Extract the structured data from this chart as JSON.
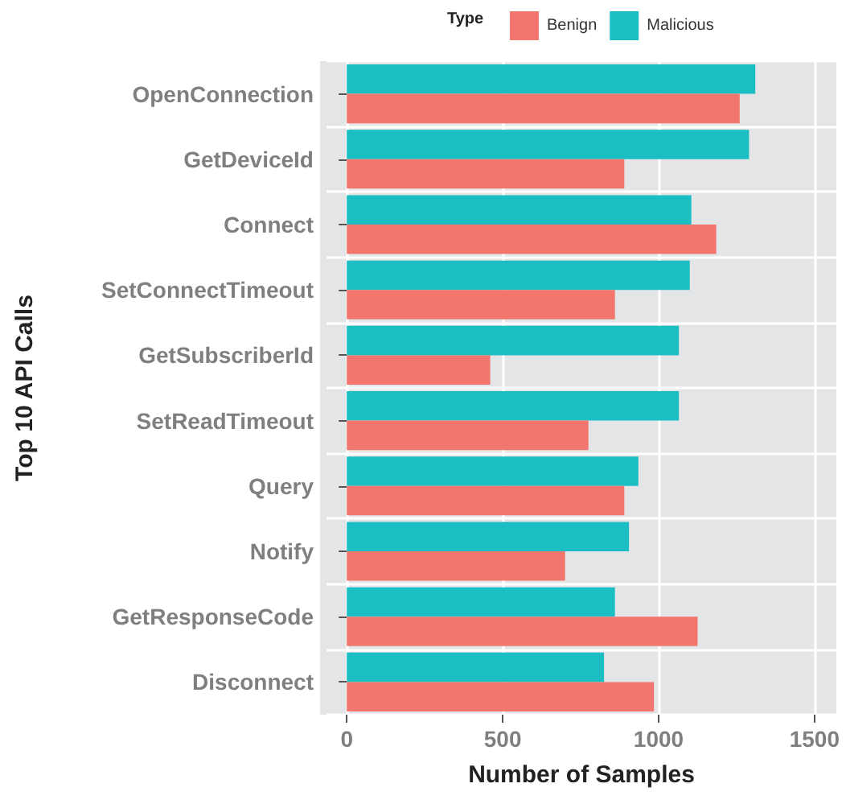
{
  "chart_data": {
    "type": "bar",
    "orientation": "horizontal",
    "xlabel": "Number of Samples",
    "ylabel": "Top 10 API Calls",
    "legend_title": "Type",
    "legend": "top",
    "categories": [
      "OpenConnection",
      "GetDeviceId",
      "Connect",
      "SetConnectTimeout",
      "GetSubscriberId",
      "SetReadTimeout",
      "Query",
      "Notify",
      "GetResponseCode",
      "Disconnect"
    ],
    "series": [
      {
        "name": "Benign",
        "color": "#f2766e",
        "values": [
          1260,
          890,
          1185,
          860,
          460,
          775,
          890,
          700,
          1125,
          985
        ]
      },
      {
        "name": "Malicious",
        "color": "#1bbec3",
        "values": [
          1310,
          1290,
          1105,
          1100,
          1065,
          1065,
          935,
          905,
          860,
          825
        ]
      }
    ],
    "xlim": [
      -65,
      1570
    ],
    "xticks": [
      0,
      500,
      1000,
      1500
    ],
    "grid": true
  }
}
